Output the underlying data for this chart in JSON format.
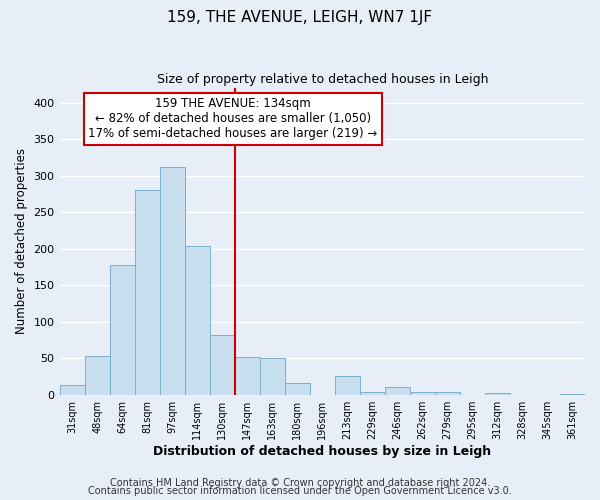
{
  "title": "159, THE AVENUE, LEIGH, WN7 1JF",
  "subtitle": "Size of property relative to detached houses in Leigh",
  "xlabel": "Distribution of detached houses by size in Leigh",
  "ylabel": "Number of detached properties",
  "bar_labels": [
    "31sqm",
    "48sqm",
    "64sqm",
    "81sqm",
    "97sqm",
    "114sqm",
    "130sqm",
    "147sqm",
    "163sqm",
    "180sqm",
    "196sqm",
    "213sqm",
    "229sqm",
    "246sqm",
    "262sqm",
    "279sqm",
    "295sqm",
    "312sqm",
    "328sqm",
    "345sqm",
    "361sqm"
  ],
  "bar_values": [
    13,
    53,
    177,
    280,
    312,
    204,
    82,
    51,
    50,
    16,
    0,
    25,
    4,
    10,
    4,
    4,
    0,
    2,
    0,
    0,
    1
  ],
  "bar_color": "#c8dff0",
  "bar_edgecolor": "#7ab0cc",
  "vline_x_index": 6,
  "vline_color": "#cc0000",
  "annotation_line1": "159 THE AVENUE: 134sqm",
  "annotation_line2": "← 82% of detached houses are smaller (1,050)",
  "annotation_line3": "17% of semi-detached houses are larger (219) →",
  "annotation_box_edgecolor": "#cc0000",
  "ylim": [
    0,
    420
  ],
  "yticks": [
    0,
    50,
    100,
    150,
    200,
    250,
    300,
    350,
    400
  ],
  "footer_line1": "Contains HM Land Registry data © Crown copyright and database right 2024.",
  "footer_line2": "Contains public sector information licensed under the Open Government Licence v3.0.",
  "bg_color": "#e8eef8",
  "plot_bg_color": "#e8eef8",
  "grid_color": "#ffffff",
  "title_fontsize": 11,
  "subtitle_fontsize": 9,
  "annotation_fontsize": 8.5,
  "footer_fontsize": 7,
  "xlabel_fontsize": 9,
  "ylabel_fontsize": 8.5
}
